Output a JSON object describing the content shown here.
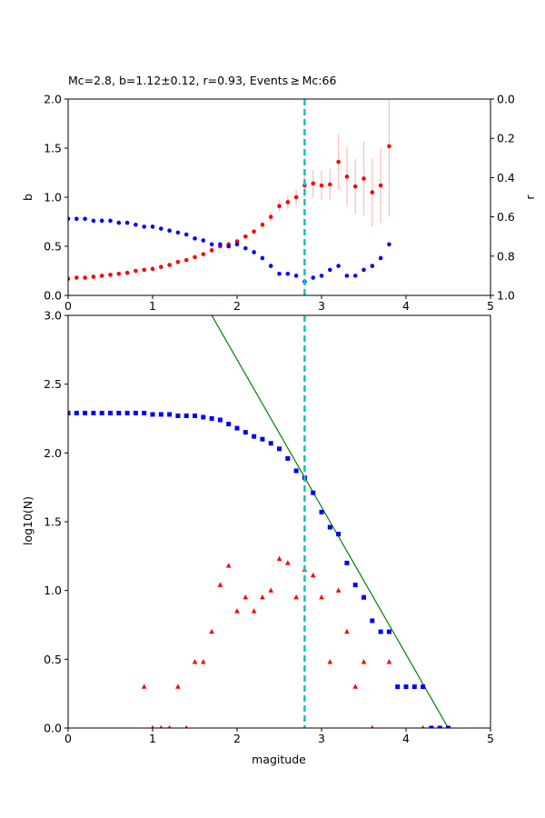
{
  "chart_data": [
    {
      "type": "scatter",
      "title": "Mc=2.8, b=1.12±0.12, r=0.93, Events ≥ Mc:66",
      "xlabel": "",
      "ylabel": "b",
      "ylabel_right": "r",
      "xlim": [
        0,
        5
      ],
      "ylim": [
        0,
        2.0
      ],
      "ylim_right": [
        1.0,
        0.0
      ],
      "xticks": [
        "0",
        "1",
        "2",
        "3",
        "4",
        "5"
      ],
      "yticks": [
        "0.0",
        "0.5",
        "1.0",
        "1.5",
        "2.0"
      ],
      "yticks_right": [
        "0.0",
        "0.2",
        "0.4",
        "0.6",
        "0.8",
        "1.0"
      ],
      "grid": false,
      "mc_line": 2.8,
      "series": [
        {
          "axis": "left",
          "color": "#ff0000",
          "errcolor": "#ffc0c0",
          "x": [
            0.0,
            0.1,
            0.2,
            0.3,
            0.4,
            0.5,
            0.6,
            0.7,
            0.8,
            0.9,
            1.0,
            1.1,
            1.2,
            1.3,
            1.4,
            1.5,
            1.6,
            1.7,
            1.8,
            1.9,
            2.0,
            2.1,
            2.2,
            2.3,
            2.4,
            2.5,
            2.6,
            2.7,
            2.8,
            2.9,
            3.0,
            3.1,
            3.2,
            3.3,
            3.4,
            3.5,
            3.6,
            3.7,
            3.8
          ],
          "y": [
            0.17,
            0.18,
            0.18,
            0.19,
            0.2,
            0.21,
            0.22,
            0.23,
            0.25,
            0.26,
            0.27,
            0.29,
            0.31,
            0.34,
            0.36,
            0.39,
            0.42,
            0.46,
            0.5,
            0.52,
            0.55,
            0.6,
            0.65,
            0.72,
            0.8,
            0.91,
            0.95,
            1.0,
            1.12,
            1.14,
            1.12,
            1.13,
            1.36,
            1.21,
            1.11,
            1.19,
            1.05,
            1.12,
            1.52
          ],
          "err": [
            0,
            0,
            0,
            0,
            0,
            0,
            0,
            0,
            0,
            0,
            0,
            0,
            0,
            0,
            0,
            0,
            0,
            0.01,
            0.01,
            0.02,
            0.02,
            0.02,
            0.03,
            0.04,
            0.05,
            0.06,
            0.07,
            0.08,
            0.12,
            0.14,
            0.15,
            0.16,
            0.28,
            0.3,
            0.28,
            0.38,
            0.35,
            0.38,
            0.72
          ]
        },
        {
          "axis": "right",
          "color": "#0000ff",
          "x": [
            0.0,
            0.1,
            0.2,
            0.3,
            0.4,
            0.5,
            0.6,
            0.7,
            0.8,
            0.9,
            1.0,
            1.1,
            1.2,
            1.3,
            1.4,
            1.5,
            1.6,
            1.7,
            1.8,
            1.9,
            2.0,
            2.1,
            2.2,
            2.3,
            2.4,
            2.5,
            2.6,
            2.7,
            2.8,
            2.9,
            3.0,
            3.1,
            3.2,
            3.3,
            3.4,
            3.5,
            3.6,
            3.7,
            3.8
          ],
          "y": [
            0.61,
            0.61,
            0.61,
            0.62,
            0.62,
            0.62,
            0.63,
            0.63,
            0.64,
            0.65,
            0.65,
            0.66,
            0.67,
            0.68,
            0.69,
            0.71,
            0.72,
            0.74,
            0.74,
            0.75,
            0.74,
            0.76,
            0.78,
            0.81,
            0.85,
            0.89,
            0.89,
            0.9,
            0.93,
            0.91,
            0.9,
            0.87,
            0.85,
            0.9,
            0.9,
            0.87,
            0.85,
            0.81,
            0.74
          ]
        }
      ]
    },
    {
      "type": "scatter",
      "title": "",
      "xlabel": "magitude",
      "ylabel": "log10(N)",
      "xlim": [
        0,
        5
      ],
      "ylim": [
        0,
        3.0
      ],
      "xticks": [
        "0",
        "1",
        "2",
        "3",
        "4",
        "5"
      ],
      "yticks": [
        "0.0",
        "0.5",
        "1.0",
        "1.5",
        "2.0",
        "2.5",
        "3.0"
      ],
      "grid": false,
      "mc_line": 2.8,
      "fit_line": {
        "color": "#008000",
        "x": [
          1.7,
          4.5
        ],
        "y": [
          3.0,
          0.0
        ]
      },
      "series": [
        {
          "marker": "square",
          "color": "#0000ff",
          "x": [
            0.0,
            0.1,
            0.2,
            0.3,
            0.4,
            0.5,
            0.6,
            0.7,
            0.8,
            0.9,
            1.0,
            1.1,
            1.2,
            1.3,
            1.4,
            1.5,
            1.6,
            1.7,
            1.8,
            1.9,
            2.0,
            2.1,
            2.2,
            2.3,
            2.4,
            2.5,
            2.6,
            2.7,
            2.8,
            2.9,
            3.0,
            3.1,
            3.2,
            3.3,
            3.4,
            3.5,
            3.6,
            3.7,
            3.8,
            3.9,
            4.0,
            4.1,
            4.2,
            4.3,
            4.4,
            4.5
          ],
          "y": [
            2.29,
            2.29,
            2.29,
            2.29,
            2.29,
            2.29,
            2.29,
            2.29,
            2.29,
            2.29,
            2.28,
            2.28,
            2.28,
            2.27,
            2.27,
            2.27,
            2.26,
            2.25,
            2.24,
            2.21,
            2.18,
            2.15,
            2.12,
            2.1,
            2.07,
            2.03,
            1.96,
            1.87,
            1.82,
            1.71,
            1.57,
            1.46,
            1.41,
            1.2,
            1.04,
            0.95,
            0.78,
            0.7,
            0.7,
            0.3,
            0.3,
            0.3,
            0.3,
            0.0,
            0.0,
            0.0
          ]
        },
        {
          "marker": "triangle",
          "color": "#ff0000",
          "x": [
            0.9,
            1.0,
            1.1,
            1.2,
            1.3,
            1.4,
            1.5,
            1.6,
            1.7,
            1.8,
            1.9,
            2.0,
            2.1,
            2.2,
            2.3,
            2.4,
            2.5,
            2.6,
            2.7,
            2.8,
            2.9,
            3.0,
            3.1,
            3.2,
            3.3,
            3.4,
            3.5,
            3.6,
            3.8,
            4.2
          ],
          "y": [
            0.3,
            0.0,
            0.0,
            0.0,
            0.3,
            0.0,
            0.48,
            0.48,
            0.7,
            1.04,
            1.18,
            0.85,
            0.95,
            0.85,
            0.95,
            1.0,
            1.23,
            1.2,
            0.95,
            1.15,
            1.11,
            0.95,
            0.48,
            1.0,
            0.7,
            0.3,
            0.48,
            0.0,
            0.48,
            0.0
          ]
        }
      ]
    }
  ]
}
